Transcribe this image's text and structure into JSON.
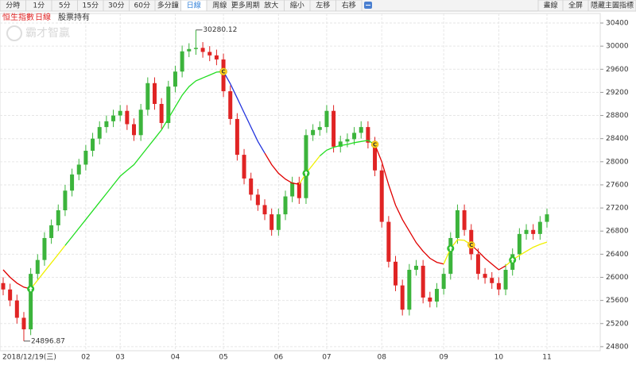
{
  "toolbar": {
    "tabs": [
      "分時",
      "1分",
      "5分",
      "15分",
      "30分",
      "60分",
      "多分鐘",
      "日線",
      "周線",
      "更多周期",
      "放大",
      "縮小",
      "左移",
      "右移"
    ],
    "active_tab": 7,
    "right_buttons": [
      "畫線",
      "全屏",
      "隱藏主圖指標"
    ]
  },
  "legend": {
    "index_name": "恒生指數",
    "period": "日線",
    "holding": "股票持有"
  },
  "watermark": "霸才智贏",
  "chart_data": {
    "type": "candlestick",
    "categories": [
      "2018/12/19(三)",
      null,
      null,
      null,
      null,
      null,
      null,
      null,
      null,
      null,
      null,
      null,
      "02",
      null,
      null,
      null,
      null,
      "03",
      null,
      null,
      null,
      null,
      null,
      null,
      null,
      "04",
      null,
      null,
      null,
      null,
      null,
      null,
      "05",
      null,
      null,
      null,
      null,
      null,
      null,
      null,
      "06",
      null,
      null,
      null,
      null,
      null,
      null,
      "07",
      null,
      null,
      null,
      null,
      null,
      null,
      null,
      "08",
      null,
      null,
      null,
      null,
      null,
      null,
      null,
      null,
      "09",
      null,
      null,
      null,
      null,
      null,
      null,
      null,
      "10",
      null,
      null,
      null,
      null,
      null,
      null,
      "11"
    ],
    "open": [
      25900,
      25790,
      25600,
      25300,
      25100,
      26060,
      26300,
      26680,
      26900,
      27160,
      27500,
      27780,
      27950,
      28190,
      28400,
      28600,
      28700,
      28800,
      28880,
      28650,
      28460,
      28900,
      29360,
      29000,
      28670,
      29300,
      29560,
      29910,
      29950,
      29970,
      29900,
      29840,
      29770,
      29220,
      28740,
      28120,
      27710,
      27430,
      27250,
      27090,
      26820,
      27090,
      27400,
      27640,
      27370,
      28460,
      28550,
      28600,
      28880,
      28260,
      28350,
      28390,
      28500,
      28600,
      28330,
      27850,
      26960,
      26270,
      25860,
      25440,
      26130,
      26200,
      25650,
      25580,
      25800,
      26060,
      26680,
      27160,
      26820,
      26400,
      26060,
      25990,
      25900,
      25790,
      26130,
      26400,
      26750,
      26820,
      26750,
      26960
    ],
    "high": [
      26000,
      25890,
      25700,
      25400,
      26160,
      26400,
      26780,
      27000,
      27260,
      27600,
      27880,
      28050,
      28290,
      28500,
      28700,
      28800,
      28900,
      28980,
      28980,
      28750,
      29000,
      29460,
      29460,
      29100,
      29400,
      29660,
      30010,
      30050,
      30280.12,
      30070,
      30000,
      29940,
      29870,
      29320,
      28840,
      28220,
      27810,
      27530,
      27350,
      27190,
      27190,
      27500,
      27740,
      27740,
      28560,
      28650,
      28700,
      28980,
      28980,
      28450,
      28490,
      28600,
      28700,
      28700,
      28430,
      27950,
      27060,
      26370,
      25960,
      26230,
      26300,
      26300,
      25750,
      25900,
      26160,
      26780,
      27260,
      27260,
      26920,
      26500,
      26160,
      26090,
      26000,
      26230,
      26500,
      26850,
      26920,
      26920,
      27060,
      27190
    ],
    "low": [
      25690,
      25500,
      25200,
      24896.87,
      25000,
      25960,
      26200,
      26580,
      26800,
      27060,
      27400,
      27680,
      27850,
      28090,
      28300,
      28500,
      28600,
      28700,
      28550,
      28360,
      28360,
      28800,
      28900,
      28570,
      28570,
      29200,
      29460,
      29810,
      29850,
      29800,
      29740,
      29670,
      29120,
      28640,
      28020,
      27610,
      27330,
      27150,
      26990,
      26720,
      26720,
      26990,
      27300,
      27270,
      27270,
      28360,
      28450,
      28500,
      28160,
      28160,
      28250,
      28290,
      28400,
      28230,
      27750,
      26860,
      26170,
      25760,
      25340,
      25340,
      26030,
      25550,
      25480,
      25480,
      25700,
      25960,
      26580,
      26720,
      26300,
      25960,
      25890,
      25800,
      25690,
      25690,
      26030,
      26300,
      26650,
      26650,
      26650,
      26860
    ],
    "close": [
      25790,
      25600,
      25300,
      25100,
      26060,
      26300,
      26680,
      26900,
      27160,
      27500,
      27780,
      27950,
      28190,
      28400,
      28600,
      28700,
      28800,
      28880,
      28650,
      28460,
      28900,
      29360,
      29000,
      28670,
      29300,
      29560,
      29910,
      29950,
      29970,
      29900,
      29840,
      29770,
      29220,
      28740,
      28120,
      27710,
      27430,
      27250,
      27090,
      26820,
      27090,
      27400,
      27640,
      27370,
      28460,
      28550,
      28600,
      28880,
      28260,
      28350,
      28390,
      28500,
      28600,
      28330,
      27850,
      26960,
      26270,
      25860,
      25440,
      26130,
      26200,
      25650,
      25580,
      25800,
      26060,
      26680,
      27160,
      26820,
      26400,
      26060,
      25990,
      25900,
      25790,
      26130,
      26400,
      26750,
      26820,
      26750,
      26960,
      27090
    ],
    "up_color": "#3cb43c",
    "down_color": "#e02424",
    "ma": {
      "values": [
        26130,
        26000,
        25900,
        25830,
        25800,
        25950,
        26100,
        26250,
        26400,
        26550,
        26700,
        26850,
        27000,
        27150,
        27300,
        27450,
        27600,
        27750,
        27850,
        27950,
        28100,
        28250,
        28400,
        28550,
        28750,
        28950,
        29150,
        29300,
        29400,
        29450,
        29500,
        29550,
        29560,
        29350,
        29100,
        28850,
        28600,
        28350,
        28150,
        27950,
        27800,
        27700,
        27630,
        27610,
        27800,
        27950,
        28100,
        28200,
        28250,
        28280,
        28300,
        28330,
        28350,
        28370,
        28300,
        28000,
        27600,
        27250,
        27000,
        26800,
        26600,
        26450,
        26330,
        26260,
        26230,
        26500,
        26650,
        26640,
        26560,
        26450,
        26330,
        26230,
        26130,
        26200,
        26300,
        26380,
        26450,
        26520,
        26570,
        26610
      ],
      "segments": [
        {
          "from": 0,
          "to": 4,
          "color": "#e00000"
        },
        {
          "from": 4,
          "to": 9,
          "color": "#f0f000"
        },
        {
          "from": 9,
          "to": 32,
          "color": "#22dd22"
        },
        {
          "from": 32,
          "to": 38,
          "color": "#2233dd"
        },
        {
          "from": 38,
          "to": 43,
          "color": "#e00000"
        },
        {
          "from": 43,
          "to": 46,
          "color": "#f0f000"
        },
        {
          "from": 46,
          "to": 54,
          "color": "#22dd22"
        },
        {
          "from": 54,
          "to": 64,
          "color": "#e00000"
        },
        {
          "from": 64,
          "to": 68,
          "color": "#f0f000"
        },
        {
          "from": 68,
          "to": 73,
          "color": "#e00000"
        },
        {
          "from": 73,
          "to": 79,
          "color": "#f0f000"
        }
      ]
    },
    "buy_signals": [
      4,
      44,
      65,
      74
    ],
    "sell_signals": [
      32,
      54,
      68
    ],
    "sell_label": "C",
    "annotations": [
      {
        "label": "30280.12",
        "x": 28,
        "value": 30280.12
      },
      {
        "label": "24896.87",
        "x": 3,
        "value": 24896.87
      }
    ],
    "ylim": [
      24730,
      30565
    ],
    "yticks": [
      24800,
      25200,
      25600,
      26000,
      26400,
      26800,
      27200,
      27600,
      28000,
      28400,
      28800,
      29200,
      29600,
      30000,
      30400
    ],
    "grid": true
  }
}
